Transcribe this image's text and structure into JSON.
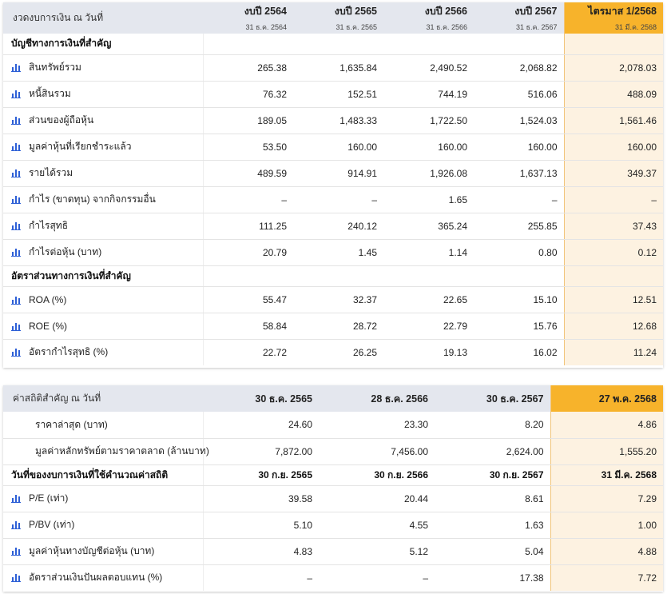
{
  "financials": {
    "header_label": "งวดงบการเงิน ณ วันที่",
    "columns": [
      {
        "title": "งบปี 2564",
        "date": "31 ธ.ค. 2564"
      },
      {
        "title": "งบปี 2565",
        "date": "31 ธ.ค. 2565"
      },
      {
        "title": "งบปี 2566",
        "date": "31 ธ.ค. 2566"
      },
      {
        "title": "งบปี 2567",
        "date": "31 ธ.ค. 2567"
      },
      {
        "title": "ไตรมาส 1/2568",
        "date": "31 มี.ค. 2568"
      }
    ],
    "section1_title": "บัญชีทางการเงินที่สำคัญ",
    "rows1": [
      {
        "label": "สินทรัพย์รวม",
        "values": [
          "265.38",
          "1,635.84",
          "2,490.52",
          "2,068.82",
          "2,078.03"
        ]
      },
      {
        "label": "หนี้สินรวม",
        "values": [
          "76.32",
          "152.51",
          "744.19",
          "516.06",
          "488.09"
        ]
      },
      {
        "label": "ส่วนของผู้ถือหุ้น",
        "values": [
          "189.05",
          "1,483.33",
          "1,722.50",
          "1,524.03",
          "1,561.46"
        ]
      },
      {
        "label": "มูลค่าหุ้นที่เรียกชำระแล้ว",
        "values": [
          "53.50",
          "160.00",
          "160.00",
          "160.00",
          "160.00"
        ]
      },
      {
        "label": "รายได้รวม",
        "values": [
          "489.59",
          "914.91",
          "1,926.08",
          "1,637.13",
          "349.37"
        ]
      },
      {
        "label": "กำไร (ขาดทุน) จากกิจกรรมอื่น",
        "values": [
          "–",
          "–",
          "1.65",
          "–",
          "–"
        ]
      },
      {
        "label": "กำไรสุทธิ",
        "values": [
          "111.25",
          "240.12",
          "365.24",
          "255.85",
          "37.43"
        ]
      },
      {
        "label": "กำไรต่อหุ้น (บาท)",
        "values": [
          "20.79",
          "1.45",
          "1.14",
          "0.80",
          "0.12"
        ]
      }
    ],
    "section2_title": "อัตราส่วนทางการเงินที่สำคัญ",
    "rows2": [
      {
        "label": "ROA (%)",
        "values": [
          "55.47",
          "32.37",
          "22.65",
          "15.10",
          "12.51"
        ]
      },
      {
        "label": "ROE (%)",
        "values": [
          "58.84",
          "28.72",
          "22.79",
          "15.76",
          "12.68"
        ]
      },
      {
        "label": "อัตรากำไรสุทธิ (%)",
        "values": [
          "22.72",
          "26.25",
          "19.13",
          "16.02",
          "11.24"
        ]
      }
    ]
  },
  "statistics": {
    "header_label": "ค่าสถิติสำคัญ ณ วันที่",
    "columns": [
      "30 ธ.ค. 2565",
      "28 ธ.ค. 2566",
      "30 ธ.ค. 2567",
      "27 พ.ค. 2568"
    ],
    "rows_plain": [
      {
        "label": "ราคาล่าสุด (บาท)",
        "values": [
          "24.60",
          "23.30",
          "8.20",
          "4.86"
        ]
      },
      {
        "label": "มูลค่าหลักทรัพย์ตามราคาตลาด (ล้านบาท)",
        "values": [
          "7,872.00",
          "7,456.00",
          "2,624.00",
          "1,555.20"
        ]
      }
    ],
    "section": {
      "label": "วันที่ของงบการเงินที่ใช้คำนวณค่าสถิติ",
      "dates": [
        "30 ก.ย. 2565",
        "30 ก.ย. 2566",
        "30 ก.ย. 2567",
        "31 มี.ค. 2568"
      ]
    },
    "rows_icon": [
      {
        "label": "P/E (เท่า)",
        "values": [
          "39.58",
          "20.44",
          "8.61",
          "7.29"
        ]
      },
      {
        "label": "P/BV (เท่า)",
        "values": [
          "5.10",
          "4.55",
          "1.63",
          "1.00"
        ]
      },
      {
        "label": "มูลค่าหุ้นทางบัญชีต่อหุ้น (บาท)",
        "values": [
          "4.83",
          "5.12",
          "5.04",
          "4.88"
        ]
      },
      {
        "label": "อัตราส่วนเงินปันผลตอบแทน (%)",
        "values": [
          "–",
          "–",
          "17.38",
          "7.72"
        ]
      }
    ]
  },
  "icons": {
    "row_icon": "bar-chart-icon"
  },
  "colors": {
    "highlight": "#f7b32b",
    "highlight_light": "#fdf2e1",
    "header_bg": "#e4e7ee",
    "icon": "#2d5fd6"
  }
}
